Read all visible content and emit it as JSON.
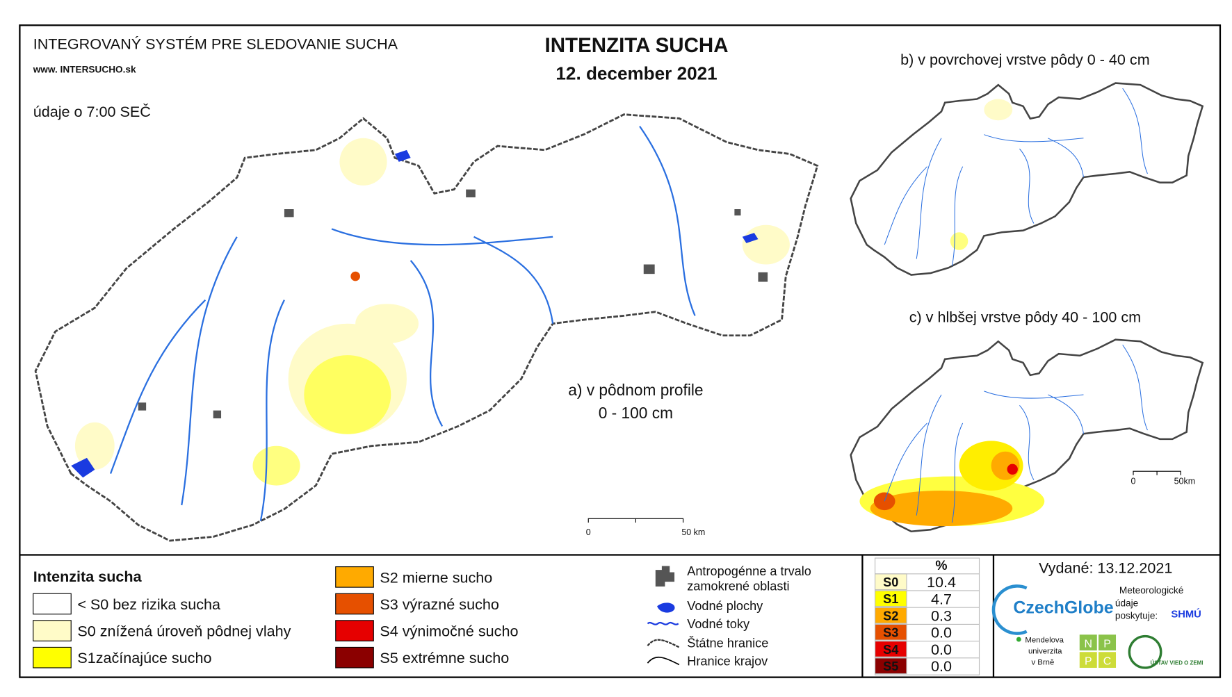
{
  "header": {
    "system": "INTEGROVANÝ SYSTÉM PRE SLEDOVANIE SUCHA",
    "website": "www. INTERSUCHO.sk",
    "time": "údaje o 7:00 SEČ",
    "title": "INTENZITA SUCHA",
    "date": "12. december 2021"
  },
  "maps": {
    "a_label": "a) v pôdnom profile",
    "a_depth": "0 - 100 cm",
    "b_label": "b) v povrchovej vrstve pôdy 0 - 40 cm",
    "c_label": "c) v hlbšej vrstve pôdy 40 - 100 cm",
    "scale_a": [
      "0",
      "50 km"
    ],
    "scale_c": [
      "0",
      "50km"
    ]
  },
  "legend": {
    "title": "Intenzita sucha",
    "items": [
      {
        "label": "< S0 bez rizika sucha",
        "color": "#ffffff"
      },
      {
        "label": "S0 znížená úroveň pôdnej vlahy",
        "color": "#fffbc8"
      },
      {
        "label": "S1začínajúce sucho",
        "color": "#ffff00"
      },
      {
        "label": "S2 mierne sucho",
        "color": "#ffaa00"
      },
      {
        "label": "S3 výrazné sucho",
        "color": "#e65000"
      },
      {
        "label": "S4 výnimočné sucho",
        "color": "#e60000"
      },
      {
        "label": "S5 extrémne sucho",
        "color": "#8b0000"
      }
    ]
  },
  "map_legend": [
    "Antropogénne a trvalo",
    "zamokrené oblasti",
    "Vodné plochy",
    "Vodné toky",
    "Štátne hranice",
    "Hranice krajov"
  ],
  "table": {
    "header": "%",
    "rows": [
      [
        "S0",
        "10.4"
      ],
      [
        "S1",
        "4.7"
      ],
      [
        "S2",
        "0.3"
      ],
      [
        "S3",
        "0.0"
      ],
      [
        "S4",
        "0.0"
      ],
      [
        "S5",
        "0.0"
      ]
    ],
    "colors": [
      "#fffbc8",
      "#ffff00",
      "#ffaa00",
      "#e65000",
      "#e60000",
      "#8b0000"
    ]
  },
  "issued": "Vydané: 13.12.2021",
  "credits": {
    "czechglobe": "CzechGlobe",
    "met": [
      "Meteorologické",
      "údaje",
      "poskytuje:"
    ],
    "shmu": "SHMÚ",
    "mendel": [
      "Mendelova",
      "univerzita",
      "v Brně"
    ],
    "nppc": [
      "N",
      "P",
      "P",
      "C"
    ],
    "uvz": "ÚSTAV VIED O ZEMI"
  }
}
